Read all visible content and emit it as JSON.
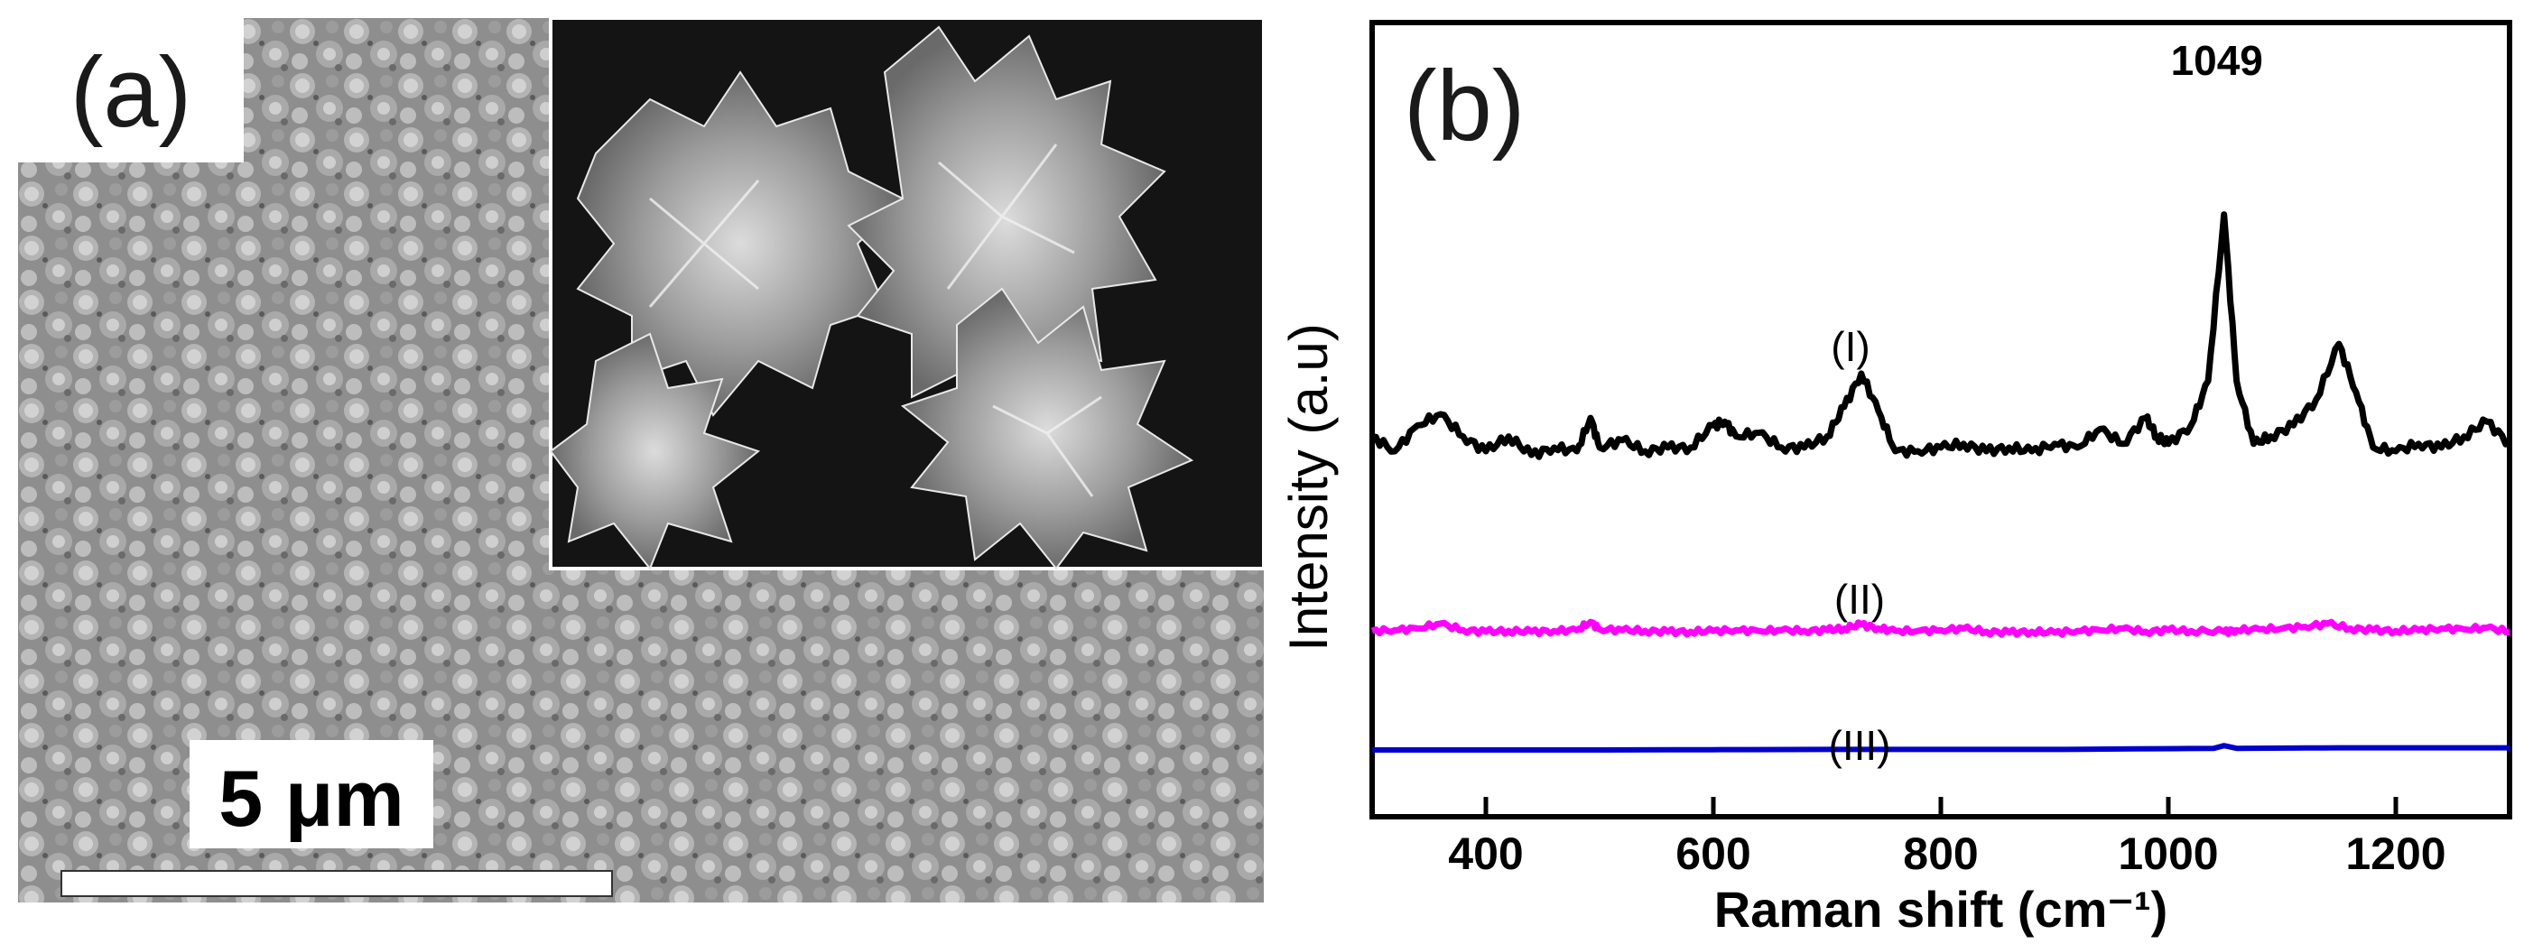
{
  "panel_a": {
    "label": "(a)",
    "scale_bar_label": "5 μm",
    "image_description_icon": "sem-micrograph-icon"
  },
  "panel_b": {
    "label": "(b)"
  },
  "chart_data": {
    "type": "line",
    "xlabel": "Raman shift  (cm⁻¹)",
    "ylabel": "Intensity (a.u)",
    "xlim": [
      300,
      1300
    ],
    "xticks": [
      400,
      600,
      800,
      1000,
      1200
    ],
    "yticks_shown": false,
    "peak_annotation": {
      "x": 1049,
      "text": "1049"
    },
    "series": [
      {
        "name": "(I)",
        "color": "#000000",
        "x": [
          300,
          320,
          340,
          360,
          380,
          400,
          420,
          440,
          460,
          480,
          492,
          500,
          520,
          540,
          560,
          580,
          600,
          610,
          620,
          640,
          660,
          680,
          700,
          715,
          730,
          745,
          760,
          780,
          800,
          820,
          840,
          860,
          880,
          900,
          920,
          940,
          960,
          980,
          990,
          1000,
          1020,
          1035,
          1049,
          1060,
          1075,
          1090,
          1110,
          1130,
          1150,
          1165,
          1180,
          1200,
          1220,
          1240,
          1260,
          1280,
          1300
        ],
        "y": [
          0.4,
          0.36,
          0.43,
          0.46,
          0.4,
          0.36,
          0.4,
          0.35,
          0.37,
          0.36,
          0.45,
          0.37,
          0.39,
          0.36,
          0.37,
          0.37,
          0.43,
          0.44,
          0.4,
          0.41,
          0.37,
          0.37,
          0.4,
          0.48,
          0.57,
          0.47,
          0.36,
          0.36,
          0.37,
          0.38,
          0.36,
          0.37,
          0.36,
          0.38,
          0.37,
          0.42,
          0.38,
          0.45,
          0.4,
          0.38,
          0.43,
          0.55,
          1.0,
          0.55,
          0.38,
          0.4,
          0.43,
          0.5,
          0.65,
          0.52,
          0.37,
          0.36,
          0.38,
          0.37,
          0.4,
          0.44,
          0.38
        ]
      },
      {
        "name": "(II)",
        "color": "#ff00ff",
        "x": [
          300,
          320,
          340,
          360,
          380,
          400,
          420,
          440,
          460,
          480,
          492,
          500,
          520,
          540,
          560,
          580,
          600,
          620,
          640,
          660,
          680,
          700,
          715,
          730,
          745,
          760,
          780,
          800,
          820,
          840,
          860,
          880,
          900,
          920,
          940,
          960,
          980,
          1000,
          1020,
          1049,
          1060,
          1080,
          1100,
          1120,
          1140,
          1160,
          1180,
          1200,
          1220,
          1240,
          1260,
          1280,
          1300
        ],
        "y": [
          0.065,
          0.07,
          0.08,
          0.11,
          0.07,
          0.06,
          0.065,
          0.06,
          0.065,
          0.07,
          0.12,
          0.075,
          0.07,
          0.065,
          0.06,
          0.06,
          0.065,
          0.07,
          0.065,
          0.07,
          0.065,
          0.07,
          0.08,
          0.105,
          0.08,
          0.065,
          0.065,
          0.07,
          0.08,
          0.06,
          0.055,
          0.06,
          0.055,
          0.065,
          0.07,
          0.08,
          0.06,
          0.07,
          0.065,
          0.06,
          0.07,
          0.075,
          0.08,
          0.09,
          0.11,
          0.08,
          0.07,
          0.065,
          0.07,
          0.08,
          0.075,
          0.085,
          0.06
        ]
      },
      {
        "name": "(III)",
        "color": "#0000cc",
        "x": [
          300,
          500,
          700,
          900,
          1040,
          1049,
          1060,
          1150,
          1300
        ],
        "y": [
          0.0,
          0.0,
          0.001,
          0.001,
          0.003,
          0.008,
          0.003,
          0.004,
          0.004
        ]
      }
    ]
  }
}
